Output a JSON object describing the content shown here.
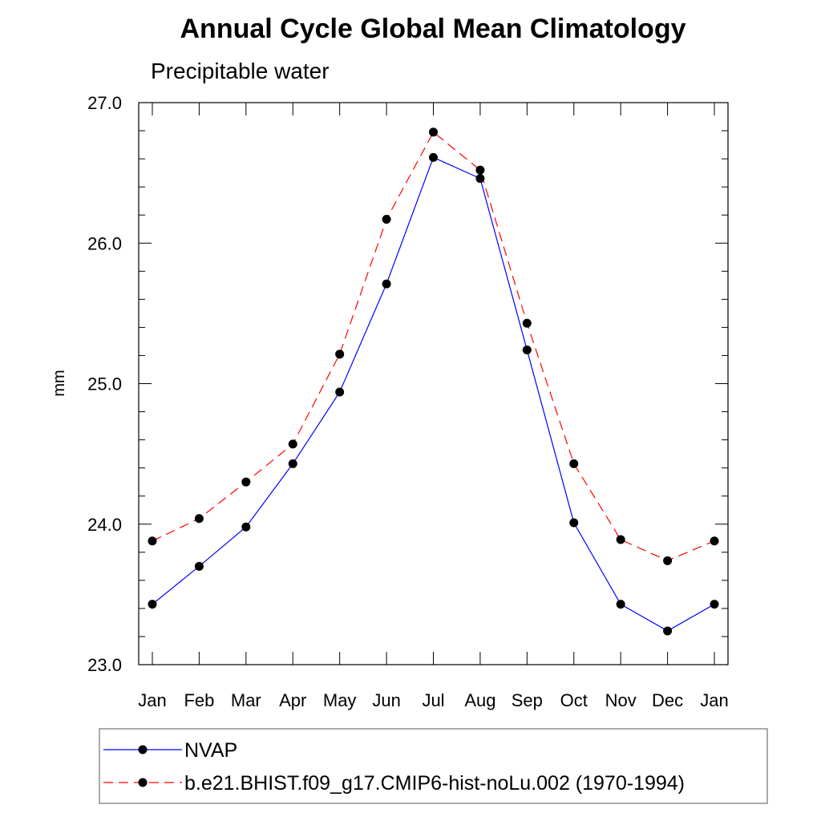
{
  "chart_data": {
    "type": "line",
    "title": "Annual Cycle Global Mean Climatology",
    "subtitle": "Precipitable water",
    "xlabel": "",
    "ylabel": "mm",
    "categories": [
      "Jan",
      "Feb",
      "Mar",
      "Apr",
      "May",
      "Jun",
      "Jul",
      "Aug",
      "Sep",
      "Oct",
      "Nov",
      "Dec",
      "Jan"
    ],
    "ylim": [
      23.0,
      27.0
    ],
    "yticks": [
      "23.0",
      "24.0",
      "25.0",
      "26.0",
      "27.0"
    ],
    "grid": false,
    "legend_position": "bottom",
    "series": [
      {
        "name": "NVAP",
        "color": "#0000ff",
        "line_style": "solid",
        "marker": "filled-circle",
        "values": [
          23.43,
          23.7,
          23.98,
          24.43,
          24.94,
          25.71,
          26.61,
          26.46,
          25.24,
          24.01,
          23.43,
          23.24,
          23.43
        ]
      },
      {
        "name": "b.e21.BHIST.f09_g17.CMIP6-hist-noLu.002 (1970-1994)",
        "color": "#ff0000",
        "line_style": "dashed",
        "marker": "filled-circle",
        "values": [
          23.88,
          24.04,
          24.3,
          24.57,
          25.21,
          26.17,
          26.79,
          26.52,
          25.43,
          24.43,
          23.89,
          23.74,
          23.88
        ]
      }
    ]
  }
}
